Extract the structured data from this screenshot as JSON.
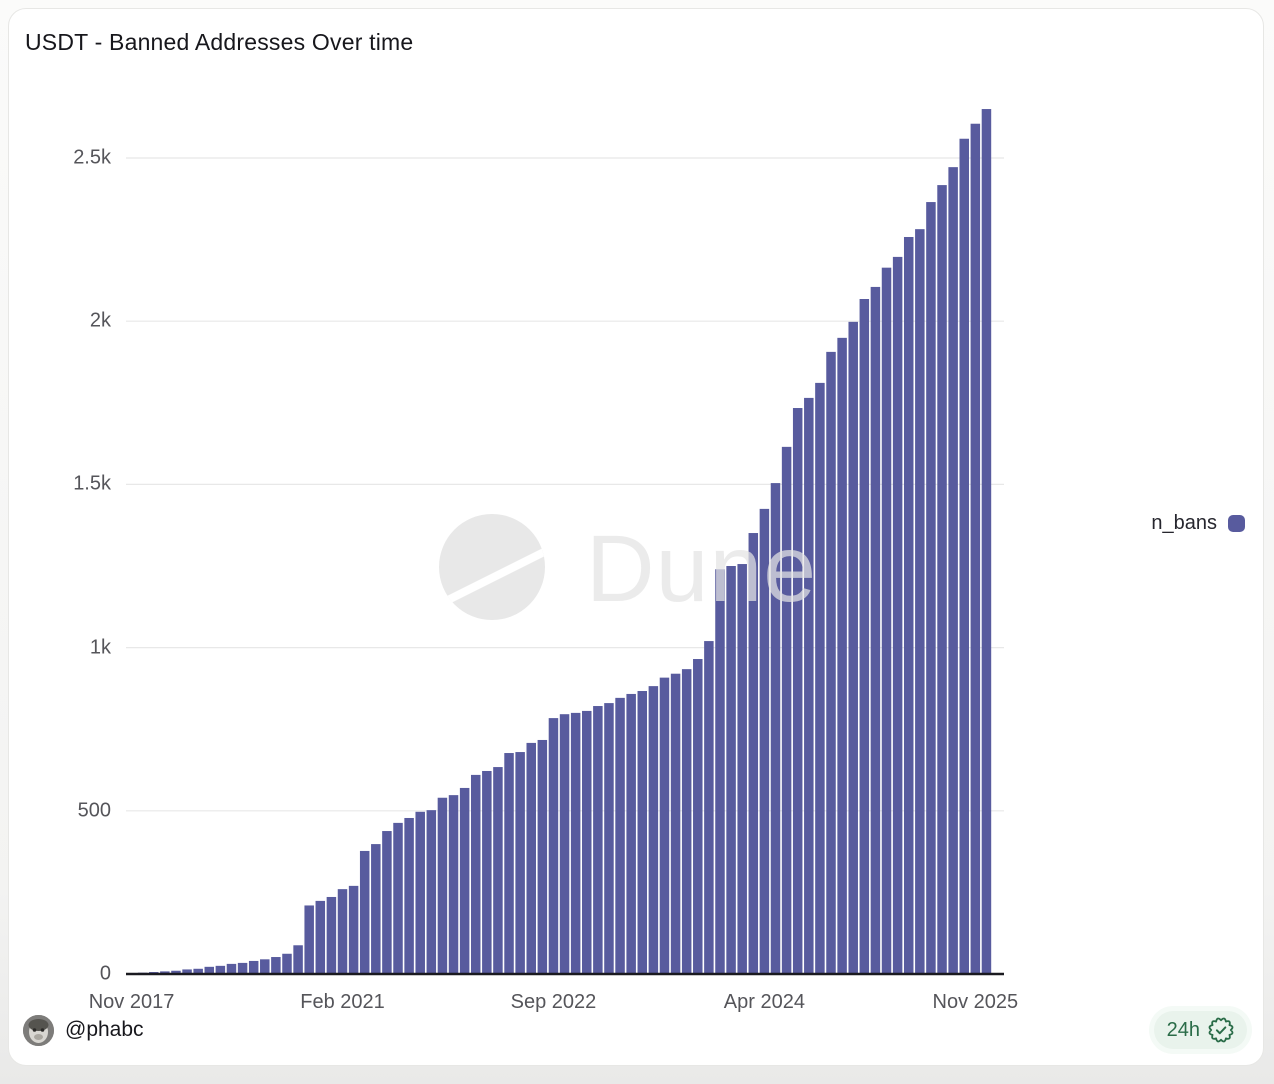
{
  "header": {
    "title": "USDT - Banned Addresses Over time"
  },
  "legend": {
    "label": "n_bans"
  },
  "watermark": {
    "text": "Dune"
  },
  "footer": {
    "author": "@phabc",
    "badge_label": "24h",
    "badge_icon": "verified-seal-icon"
  },
  "colors": {
    "bar": "#585b9e",
    "grid": "#e8e8e8",
    "baseline": "#1a1a20",
    "axis_text": "#55555a",
    "badge_green": "#2a6c48",
    "badge_bg": "#e9f3ec",
    "watermark_gray": "#e4e4e4"
  },
  "chart_data": {
    "type": "bar",
    "title": "USDT - Banned Addresses Over time",
    "xlabel": "",
    "ylabel": "",
    "grid": "horizontal",
    "legend_position": "right",
    "ylim": [
      0,
      2680
    ],
    "y_ticks": [
      0,
      500,
      1000,
      1500,
      2000,
      2500
    ],
    "y_tick_labels": [
      "0",
      "500",
      "1k",
      "1.5k",
      "2k",
      "2.5k"
    ],
    "x_tick_indices": [
      0,
      19,
      38,
      57,
      76
    ],
    "x_tick_labels": [
      "Nov 2017",
      "Feb 2021",
      "Sep 2022",
      "Apr 2024",
      "Nov 2025"
    ],
    "series": [
      {
        "name": "n_bans",
        "values": [
          2,
          4,
          6,
          8,
          10,
          14,
          16,
          22,
          25,
          31,
          34,
          40,
          45,
          52,
          62,
          88,
          210,
          224,
          236,
          260,
          270,
          377,
          398,
          438,
          463,
          478,
          497,
          502,
          540,
          548,
          570,
          610,
          622,
          634,
          677,
          680,
          708,
          717,
          784,
          796,
          800,
          806,
          821,
          830,
          846,
          858,
          867,
          882,
          908,
          920,
          934,
          965,
          1020,
          1240,
          1250,
          1256,
          1351,
          1425,
          1504,
          1615,
          1734,
          1765,
          1811,
          1906,
          1949,
          1998,
          2068,
          2105,
          2164,
          2197,
          2258,
          2282,
          2365,
          2417,
          2472,
          2559,
          2605,
          2650
        ]
      }
    ]
  }
}
